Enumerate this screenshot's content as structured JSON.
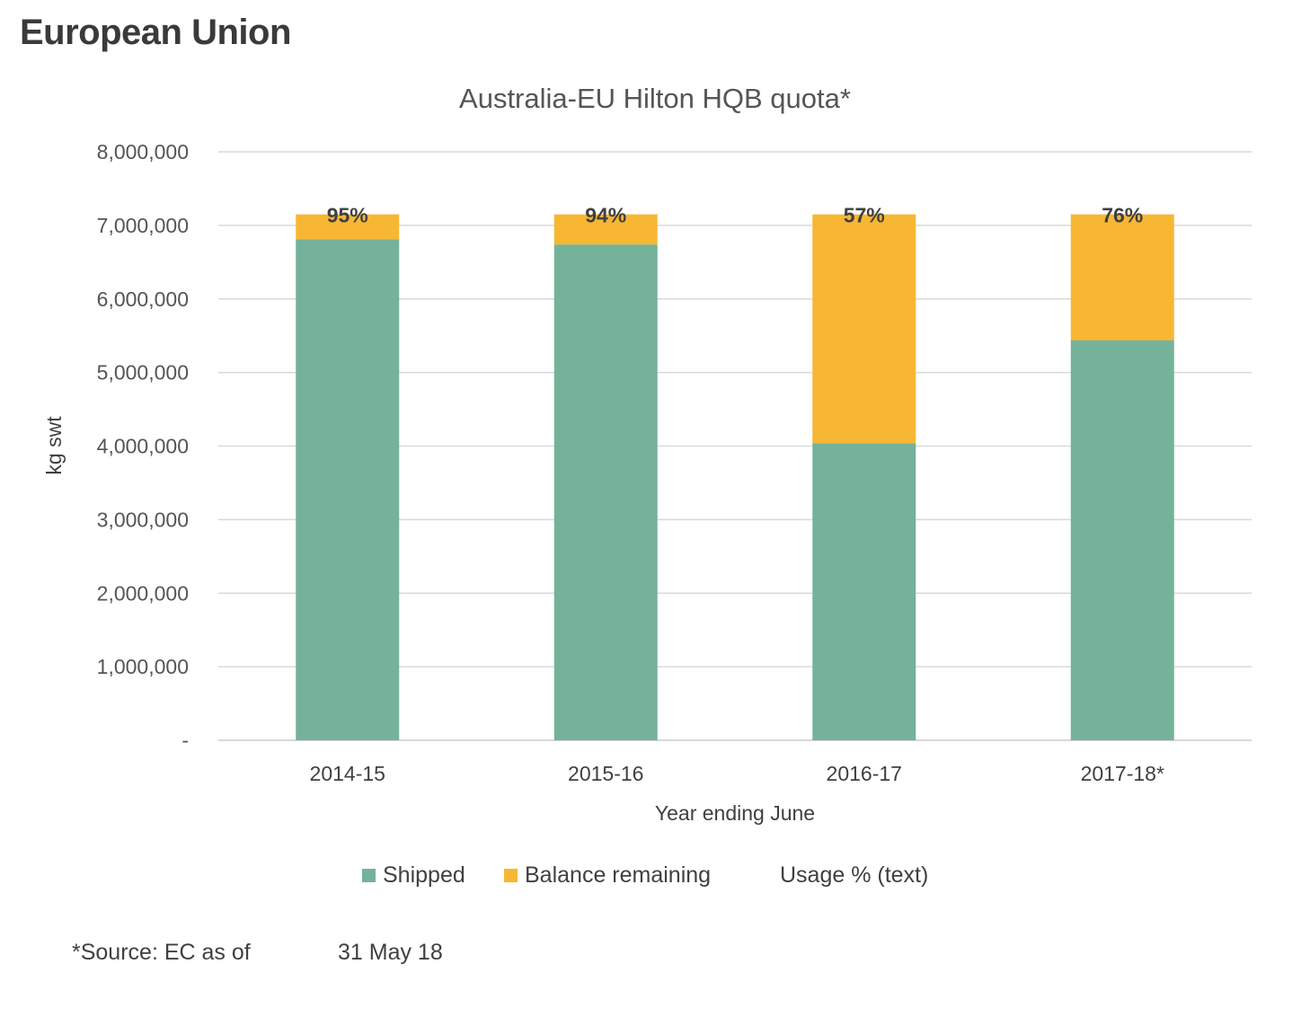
{
  "page": {
    "title": "European Union",
    "source_label": "*Source:  EC as of",
    "source_date": "31 May 18"
  },
  "colors": {
    "shipped": "#75b29a",
    "balance": "#f7b733",
    "grid": "#d9d9d9"
  },
  "chart_data": {
    "type": "bar",
    "stacked": true,
    "title": "Australia-EU Hilton HQB quota*",
    "xlabel": "Year ending June",
    "ylabel": "kg swt",
    "ylim": [
      0,
      8000000
    ],
    "ytick_labels": [
      "-",
      "1,000,000",
      "2,000,000",
      "3,000,000",
      "4,000,000",
      "5,000,000",
      "6,000,000",
      "7,000,000",
      "8,000,000"
    ],
    "categories": [
      "2014-15",
      "2015-16",
      "2016-17",
      "2017-18*"
    ],
    "series": [
      {
        "name": "Shipped",
        "values": [
          6810000,
          6740000,
          4040000,
          5440000
        ]
      },
      {
        "name": "Balance remaining",
        "values": [
          340000,
          410000,
          3110000,
          1710000
        ]
      }
    ],
    "usage_labels": [
      "95%",
      "94%",
      "57%",
      "76%"
    ],
    "legend": [
      "Shipped",
      "Balance remaining",
      "Usage % (text)"
    ],
    "legend_position": "bottom",
    "grid": true
  }
}
